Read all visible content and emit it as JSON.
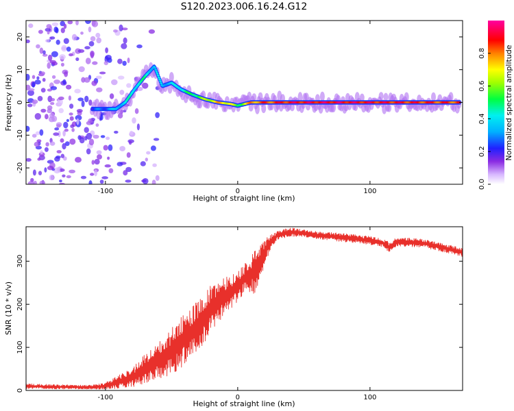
{
  "title": "S120.2023.006.16.24.G12",
  "colors": {
    "snr_line": "#e8302b",
    "frame": "#000000",
    "background": "#ffffff"
  },
  "chart_data": [
    {
      "type": "heatmap",
      "xlabel": "Height of straight line (km)",
      "ylabel": "Frequency (Hz)",
      "xlim": [
        -160,
        170
      ],
      "ylim": [
        -25,
        25
      ],
      "xticks": [
        -100,
        0,
        100
      ],
      "yticks": [
        -20,
        -10,
        0,
        10,
        20
      ],
      "colorbar": {
        "label": "Normalized spectral amplitude",
        "range": [
          0,
          1
        ],
        "ticks": [
          0.0,
          0.2,
          0.4,
          0.6,
          0.8
        ],
        "colormap": "white-purple-blue-cyan-green-yellow-red-magenta"
      },
      "ridge": [
        {
          "x": -110,
          "y": -2,
          "amp": 0.22
        },
        {
          "x": -100,
          "y": -2,
          "amp": 0.3
        },
        {
          "x": -92,
          "y": -2,
          "amp": 0.35
        },
        {
          "x": -85,
          "y": 0,
          "amp": 0.4
        },
        {
          "x": -78,
          "y": 4,
          "amp": 0.45
        },
        {
          "x": -70,
          "y": 8,
          "amp": 0.45
        },
        {
          "x": -63,
          "y": 11,
          "amp": 0.35
        },
        {
          "x": -57,
          "y": 5,
          "amp": 0.38
        },
        {
          "x": -50,
          "y": 6,
          "amp": 0.35
        },
        {
          "x": -43,
          "y": 4,
          "amp": 0.45
        },
        {
          "x": -35,
          "y": 2.5,
          "amp": 0.5
        },
        {
          "x": -25,
          "y": 1,
          "amp": 0.6
        },
        {
          "x": -15,
          "y": 0,
          "amp": 0.75
        },
        {
          "x": -5,
          "y": -0.5,
          "amp": 0.7
        },
        {
          "x": 0,
          "y": -1,
          "amp": 0.5
        },
        {
          "x": 10,
          "y": 0,
          "amp": 0.8
        },
        {
          "x": 40,
          "y": 0,
          "amp": 0.9
        },
        {
          "x": 75,
          "y": 0,
          "amp": 0.92
        },
        {
          "x": 100,
          "y": 0,
          "amp": 0.9
        },
        {
          "x": 130,
          "y": 0,
          "amp": 0.88
        },
        {
          "x": 168,
          "y": 0,
          "amp": 0.85
        }
      ],
      "scatter_noise": {
        "x_range": [
          -160,
          -60
        ],
        "y_range": [
          -25,
          25
        ],
        "amp_range": [
          0.05,
          0.22
        ]
      }
    },
    {
      "type": "line",
      "xlabel": "Height of straight line (km)",
      "ylabel": "SNR (10 * v/v)",
      "xlim": [
        -160,
        170
      ],
      "ylim": [
        0,
        380
      ],
      "xticks": [
        -100,
        0,
        100
      ],
      "yticks": [
        0,
        100,
        200,
        300
      ],
      "series": [
        {
          "x": [
            -160,
            -130,
            -110,
            -100,
            -90,
            -80,
            -70,
            -60,
            -50,
            -40,
            -30,
            -20,
            -10,
            0,
            5,
            10,
            12,
            14,
            20,
            25,
            30,
            40,
            50,
            60,
            80,
            100,
            110,
            115,
            120,
            140,
            160,
            170
          ],
          "mean": [
            10,
            8,
            8,
            10,
            20,
            30,
            50,
            70,
            90,
            120,
            150,
            190,
            220,
            240,
            260,
            270,
            280,
            270,
            320,
            345,
            360,
            368,
            365,
            360,
            355,
            348,
            342,
            332,
            345,
            342,
            328,
            320
          ],
          "spread": [
            6,
            5,
            5,
            8,
            16,
            22,
            35,
            45,
            55,
            60,
            60,
            55,
            45,
            35,
            35,
            40,
            60,
            50,
            30,
            18,
            12,
            10,
            9,
            9,
            10,
            10,
            10,
            12,
            10,
            10,
            10,
            10
          ]
        }
      ]
    }
  ]
}
